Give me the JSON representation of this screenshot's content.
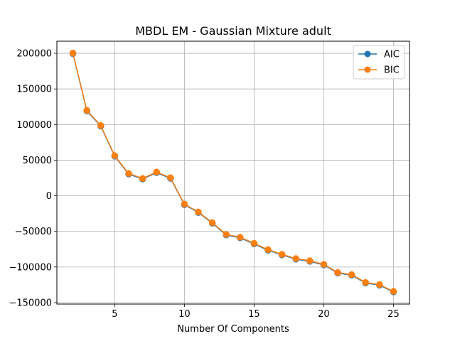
{
  "chart_data": {
    "type": "line",
    "title": "MBDL EM - Gaussian Mixture adult",
    "xlabel": "Number Of Components",
    "ylabel": "",
    "xlim": [
      0.85,
      26.15
    ],
    "ylim": [
      -152000,
      217000
    ],
    "xticks": [
      5,
      10,
      15,
      20,
      25
    ],
    "yticks": [
      200000,
      150000,
      100000,
      50000,
      0,
      -50000,
      -100000,
      -150000
    ],
    "xtick_labels": [
      "5",
      "10",
      "15",
      "20",
      "25"
    ],
    "ytick_labels": [
      "200000",
      "150000",
      "100000",
      "50000",
      "0",
      "−50000",
      "−100000",
      "−150000"
    ],
    "grid": true,
    "legend_position": "top-right",
    "x": [
      2,
      3,
      4,
      5,
      6,
      7,
      8,
      9,
      10,
      11,
      12,
      13,
      14,
      15,
      16,
      17,
      18,
      19,
      20,
      21,
      22,
      23,
      24,
      25
    ],
    "series": [
      {
        "name": "AIC",
        "color": "#1f77b4",
        "marker": "circle",
        "values": [
          199500,
          119200,
          97800,
          55500,
          30500,
          23500,
          32500,
          24500,
          -12500,
          -23500,
          -38500,
          -55000,
          -59000,
          -67500,
          -76500,
          -83000,
          -89000,
          -92000,
          -97000,
          -108500,
          -111500,
          -122500,
          -125500,
          -135000
        ]
      },
      {
        "name": "BIC",
        "color": "#ff7f0e",
        "marker": "circle",
        "values": [
          200300,
          120000,
          98600,
          56300,
          31300,
          24300,
          33300,
          25300,
          -11700,
          -22700,
          -37700,
          -54200,
          -58200,
          -66700,
          -75700,
          -82200,
          -88200,
          -91200,
          -96200,
          -107700,
          -110700,
          -121700,
          -124700,
          -134200
        ]
      }
    ]
  }
}
